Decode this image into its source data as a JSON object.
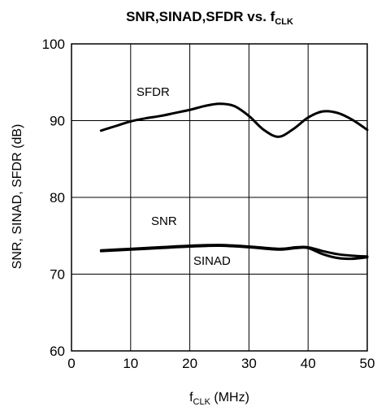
{
  "chart_data": {
    "type": "line",
    "title": {
      "main": "SNR,SINAD,SFDR vs. f",
      "sub": "CLK"
    },
    "xlabel": {
      "prefix": "f",
      "sub": "CLK",
      "suffix": " (MHz)"
    },
    "ylabel": "SNR, SINAD, SFDR (dB)",
    "xlim": [
      0,
      50
    ],
    "ylim": [
      60,
      100
    ],
    "xticks": [
      0,
      10,
      20,
      30,
      40,
      50
    ],
    "yticks": [
      60,
      70,
      80,
      90,
      100
    ],
    "xtick_labels": [
      "0",
      "10",
      "20",
      "30",
      "40",
      "50"
    ],
    "ytick_labels": [
      "60",
      "70",
      "80",
      "90",
      "100"
    ],
    "grid": true,
    "legend": "none",
    "series": [
      {
        "name": "SFDR",
        "x": [
          5,
          7.5,
          10,
          12.5,
          15,
          17.5,
          20,
          22.5,
          25,
          27.5,
          30,
          32.5,
          35,
          37.5,
          40,
          42.5,
          45,
          47.5,
          50
        ],
        "values": [
          88.7,
          89.3,
          89.9,
          90.3,
          90.6,
          91.0,
          91.4,
          91.9,
          92.2,
          91.9,
          90.6,
          88.8,
          87.9,
          88.9,
          90.4,
          91.2,
          91.0,
          90.1,
          88.8
        ]
      },
      {
        "name": "SNR",
        "x": [
          5,
          10,
          15,
          20,
          25,
          30,
          35,
          38,
          40,
          42.5,
          45,
          47.5,
          50
        ],
        "values": [
          73.1,
          73.3,
          73.5,
          73.7,
          73.8,
          73.6,
          73.3,
          73.5,
          73.5,
          73.0,
          72.6,
          72.4,
          72.3
        ]
      },
      {
        "name": "SINAD",
        "x": [
          5,
          10,
          15,
          20,
          25,
          30,
          35,
          38,
          40,
          42.5,
          45,
          47.5,
          50
        ],
        "values": [
          73.0,
          73.2,
          73.4,
          73.6,
          73.7,
          73.5,
          73.2,
          73.4,
          73.4,
          72.6,
          72.1,
          72.0,
          72.2
        ]
      }
    ]
  },
  "colors": {
    "background": "#ffffff",
    "line": "#000000",
    "grid": "#000000"
  }
}
